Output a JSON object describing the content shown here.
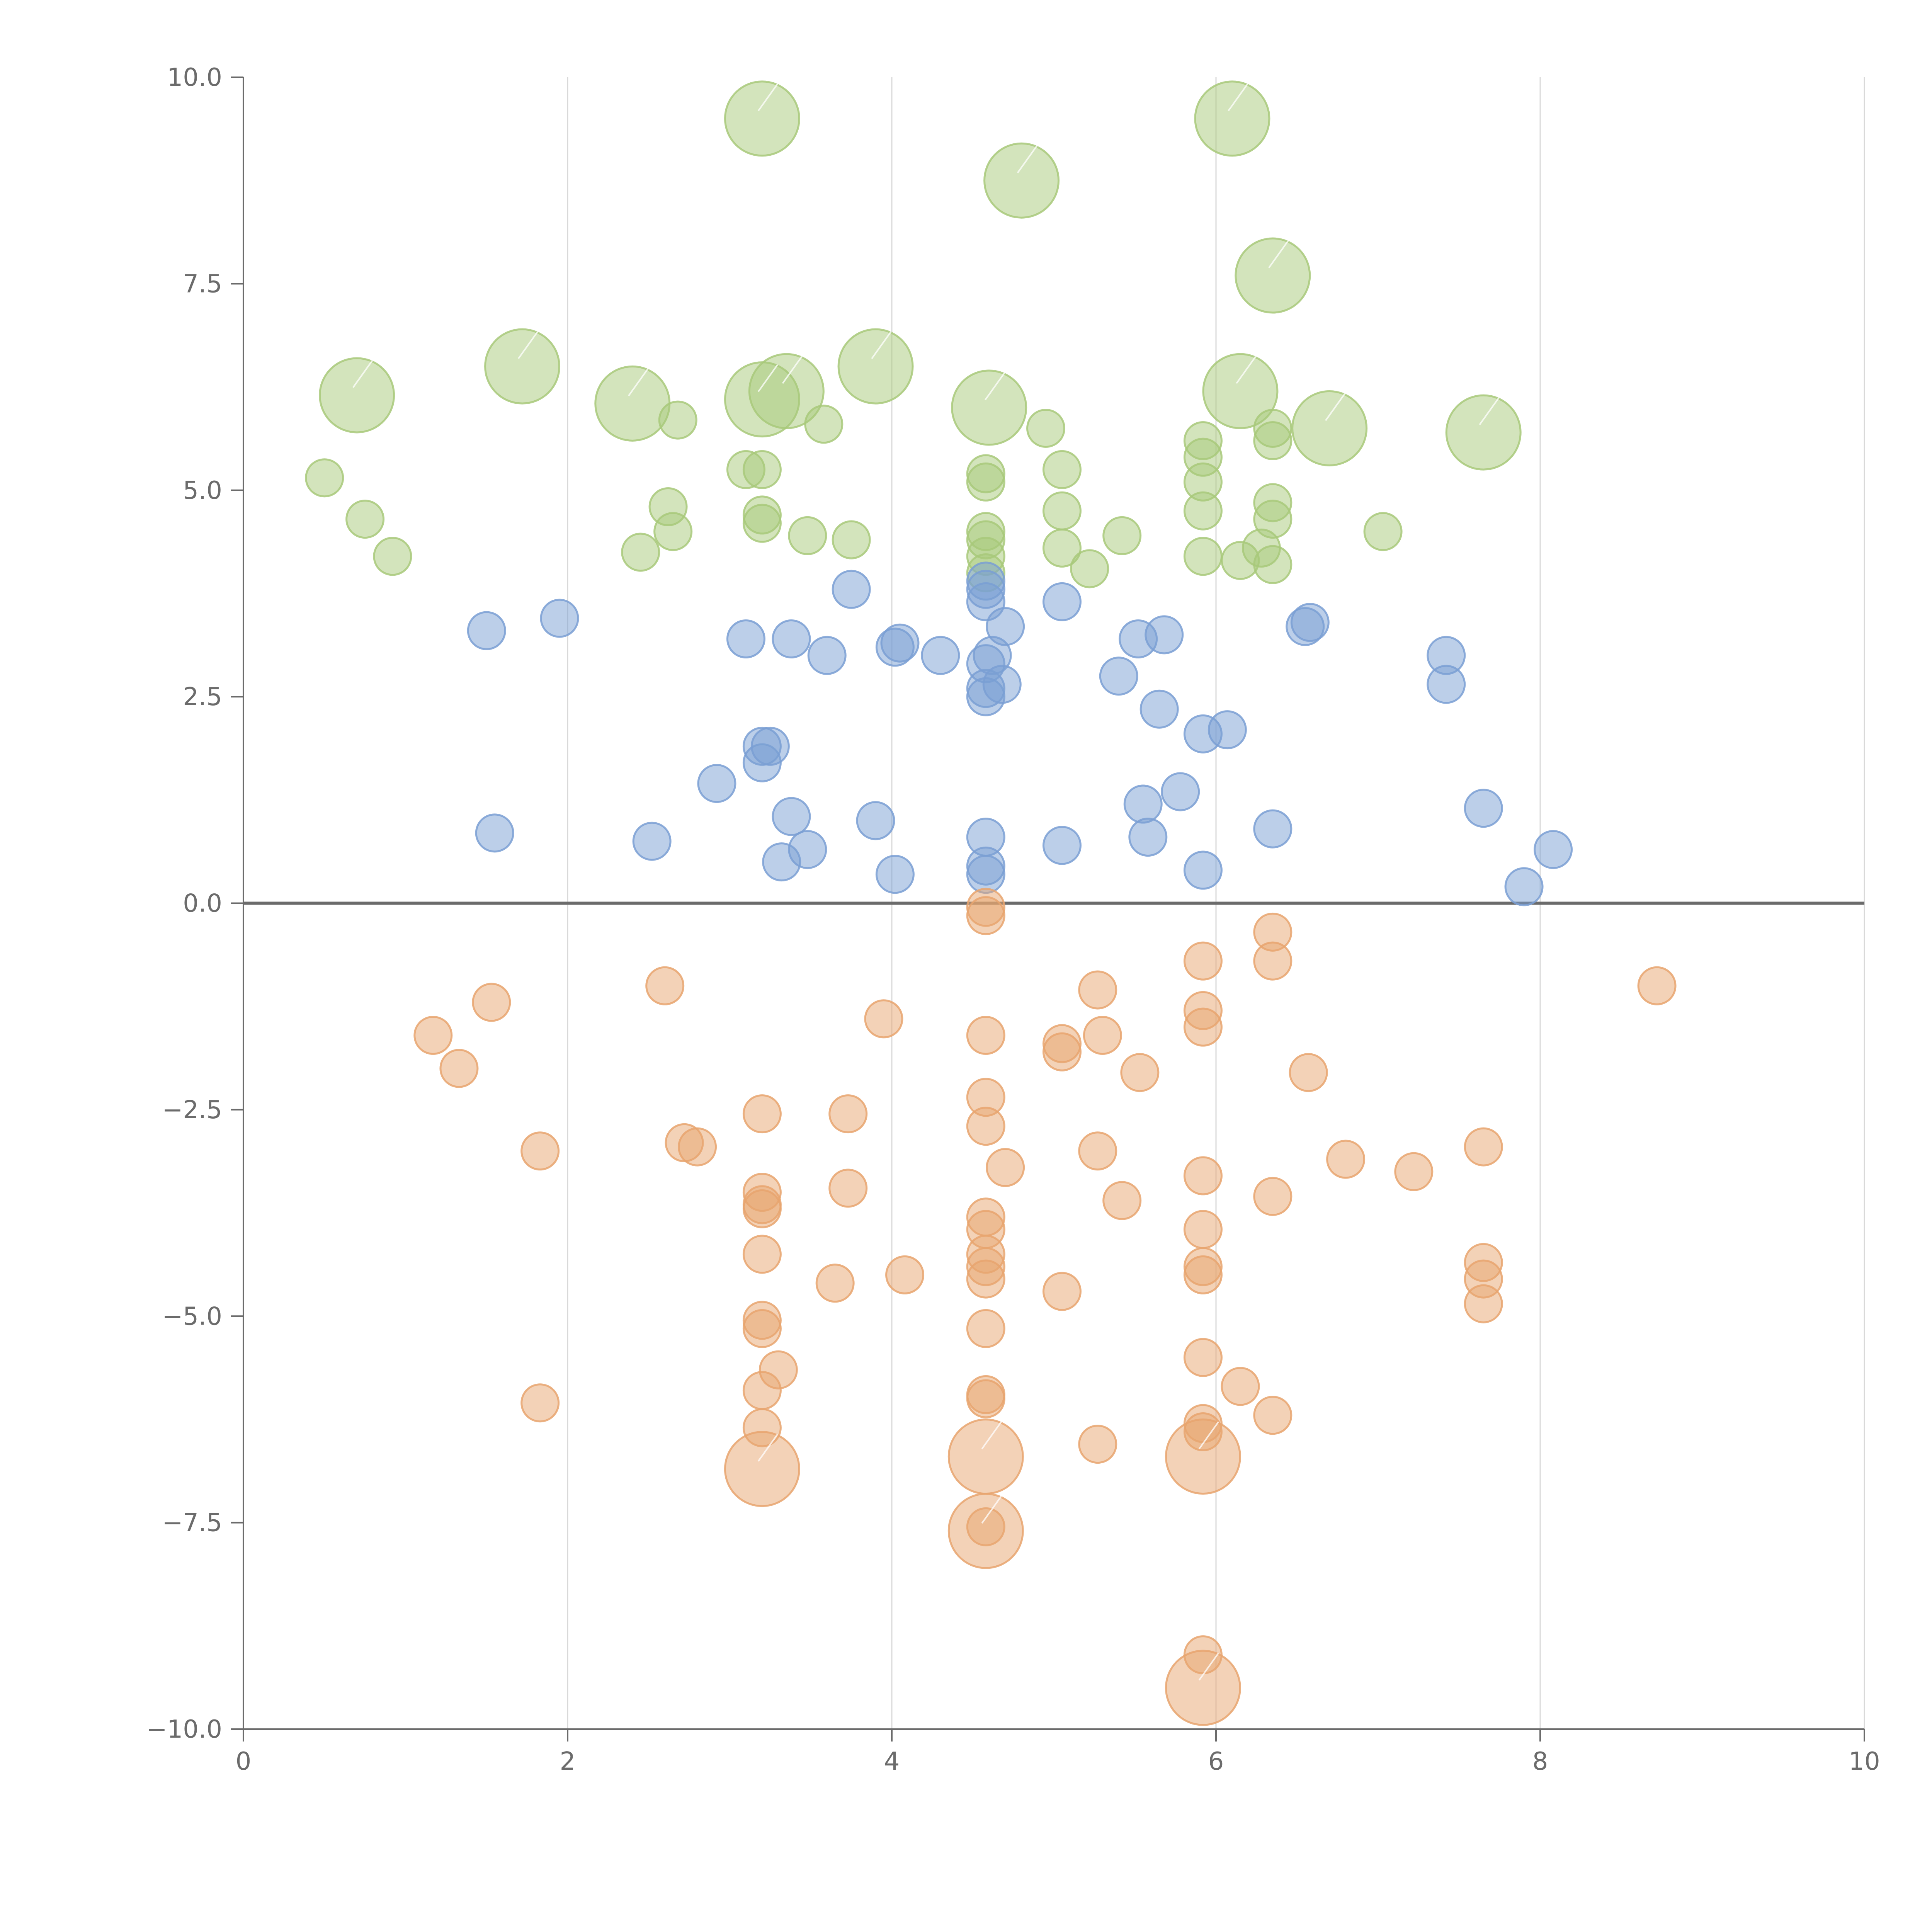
{
  "chart_data": {
    "type": "scatter",
    "xlim": [
      0,
      10
    ],
    "ylim": [
      -10,
      10
    ],
    "x_ticks": [
      0,
      2,
      4,
      6,
      8,
      10
    ],
    "y_ticks": [
      -10,
      -7.5,
      -5,
      -2.5,
      0,
      2.5,
      5,
      7.5,
      10
    ],
    "x_tick_labels": [
      "0",
      "2",
      "4",
      "6",
      "8",
      "10"
    ],
    "y_tick_labels": [
      "−10.0",
      "−7.5",
      "−5.0",
      "−2.5",
      "0.0",
      "2.5",
      "5.0",
      "7.5",
      "10.0"
    ],
    "grid": "vertical",
    "zero_line": true,
    "colors": {
      "green": "#a8c97a",
      "blue": "#7a9fd4",
      "orange": "#e8a56f"
    },
    "series": [
      {
        "color_key": "green",
        "points": [
          [
            3.2,
            9.5,
            2
          ],
          [
            6.1,
            9.5,
            2
          ],
          [
            4.8,
            8.75,
            2
          ],
          [
            6.35,
            7.6,
            2
          ],
          [
            0.7,
            6.15,
            2
          ],
          [
            1.72,
            6.5,
            2
          ],
          [
            3.9,
            6.5,
            2
          ],
          [
            2.4,
            6.05,
            2
          ],
          [
            3.2,
            6.1,
            2
          ],
          [
            3.35,
            6.2,
            2
          ],
          [
            4.6,
            6.0,
            2
          ],
          [
            6.15,
            6.2,
            2
          ],
          [
            6.7,
            5.75,
            2
          ],
          [
            7.65,
            5.7,
            2
          ],
          [
            0.5,
            5.15,
            1
          ],
          [
            0.75,
            4.65,
            1
          ],
          [
            0.92,
            4.2,
            1
          ],
          [
            2.45,
            4.25,
            1
          ],
          [
            2.62,
            4.8,
            1
          ],
          [
            2.65,
            4.5,
            1
          ],
          [
            2.68,
            5.85,
            1
          ],
          [
            3.1,
            5.25,
            1
          ],
          [
            3.2,
            5.25,
            1
          ],
          [
            3.2,
            4.7,
            1
          ],
          [
            3.2,
            4.6,
            1
          ],
          [
            3.48,
            4.45,
            1
          ],
          [
            3.58,
            5.8,
            1
          ],
          [
            3.75,
            4.4,
            1
          ],
          [
            4.58,
            5.2,
            1
          ],
          [
            4.58,
            5.1,
            1
          ],
          [
            4.58,
            4.5,
            1
          ],
          [
            4.58,
            4.4,
            1
          ],
          [
            4.58,
            4.2,
            1
          ],
          [
            4.58,
            4.0,
            1
          ],
          [
            4.95,
            5.75,
            1
          ],
          [
            5.05,
            5.25,
            1
          ],
          [
            5.05,
            4.75,
            1
          ],
          [
            5.05,
            4.3,
            1
          ],
          [
            5.22,
            4.05,
            1
          ],
          [
            5.42,
            4.45,
            1
          ],
          [
            5.92,
            5.6,
            1
          ],
          [
            5.92,
            5.4,
            1
          ],
          [
            5.92,
            5.1,
            1
          ],
          [
            5.92,
            4.75,
            1
          ],
          [
            5.92,
            4.2,
            1
          ],
          [
            6.15,
            4.15,
            1
          ],
          [
            6.28,
            4.3,
            1
          ],
          [
            6.35,
            5.75,
            1
          ],
          [
            6.35,
            5.6,
            1
          ],
          [
            6.35,
            4.85,
            1
          ],
          [
            6.35,
            4.65,
            1
          ],
          [
            6.35,
            4.1,
            1
          ],
          [
            7.03,
            4.5,
            1
          ]
        ]
      },
      {
        "color_key": "blue",
        "points": [
          [
            1.5,
            3.3,
            1
          ],
          [
            1.95,
            3.45,
            1
          ],
          [
            3.1,
            3.2,
            1
          ],
          [
            3.38,
            3.2,
            1
          ],
          [
            3.6,
            3.0,
            1
          ],
          [
            3.75,
            3.8,
            1
          ],
          [
            4.02,
            3.1,
            1
          ],
          [
            4.05,
            3.15,
            1
          ],
          [
            4.3,
            3.0,
            1
          ],
          [
            4.58,
            3.9,
            1
          ],
          [
            4.58,
            3.65,
            1
          ],
          [
            4.58,
            3.8,
            1
          ],
          [
            4.58,
            2.9,
            1
          ],
          [
            4.58,
            2.6,
            1
          ],
          [
            4.58,
            2.5,
            1
          ],
          [
            4.62,
            3.0,
            1
          ],
          [
            4.68,
            2.65,
            1
          ],
          [
            4.7,
            3.35,
            1
          ],
          [
            5.05,
            3.65,
            1
          ],
          [
            5.4,
            2.75,
            1
          ],
          [
            5.52,
            3.2,
            1
          ],
          [
            5.65,
            2.35,
            1
          ],
          [
            5.68,
            3.25,
            1
          ],
          [
            5.92,
            2.05,
            1
          ],
          [
            6.07,
            2.1,
            1
          ],
          [
            6.55,
            3.35,
            1
          ],
          [
            6.58,
            3.4,
            1
          ],
          [
            7.42,
            3.0,
            1
          ],
          [
            7.42,
            2.65,
            1
          ],
          [
            1.55,
            0.85,
            1
          ],
          [
            2.52,
            0.75,
            1
          ],
          [
            2.92,
            1.45,
            1
          ],
          [
            3.2,
            1.9,
            1
          ],
          [
            3.2,
            1.7,
            1
          ],
          [
            3.25,
            1.9,
            1
          ],
          [
            3.32,
            0.5,
            1
          ],
          [
            3.38,
            1.05,
            1
          ],
          [
            3.48,
            0.65,
            1
          ],
          [
            3.9,
            1.0,
            1
          ],
          [
            4.02,
            0.35,
            1
          ],
          [
            4.58,
            0.8,
            1
          ],
          [
            4.58,
            0.45,
            1
          ],
          [
            4.58,
            0.35,
            1
          ],
          [
            5.05,
            0.7,
            1
          ],
          [
            5.55,
            1.2,
            1
          ],
          [
            5.58,
            0.8,
            1
          ],
          [
            5.78,
            1.35,
            1
          ],
          [
            5.92,
            0.4,
            1
          ],
          [
            6.35,
            0.9,
            1
          ],
          [
            7.65,
            1.15,
            1
          ],
          [
            7.9,
            0.2,
            1
          ],
          [
            8.08,
            0.65,
            1
          ]
        ]
      },
      {
        "color_key": "orange",
        "points": [
          [
            4.58,
            -0.05,
            1
          ],
          [
            4.58,
            -0.15,
            1
          ],
          [
            1.17,
            -1.6,
            1
          ],
          [
            1.33,
            -2.0,
            1
          ],
          [
            1.53,
            -1.2,
            1
          ],
          [
            1.83,
            -3.0,
            1
          ],
          [
            1.83,
            -6.05,
            1
          ],
          [
            2.6,
            -1.0,
            1
          ],
          [
            2.72,
            -2.9,
            1
          ],
          [
            2.8,
            -2.95,
            1
          ],
          [
            3.2,
            -2.55,
            1
          ],
          [
            3.2,
            -3.5,
            1
          ],
          [
            3.2,
            -3.65,
            1
          ],
          [
            3.2,
            -3.7,
            1
          ],
          [
            3.2,
            -4.25,
            1
          ],
          [
            3.2,
            -5.05,
            1
          ],
          [
            3.2,
            -5.15,
            1
          ],
          [
            3.2,
            -5.9,
            1
          ],
          [
            3.2,
            -6.35,
            1
          ],
          [
            3.3,
            -5.65,
            1
          ],
          [
            3.65,
            -4.6,
            1
          ],
          [
            3.73,
            -2.55,
            1
          ],
          [
            3.73,
            -3.45,
            1
          ],
          [
            3.95,
            -1.4,
            1
          ],
          [
            4.08,
            -4.5,
            1
          ],
          [
            4.58,
            -1.6,
            1
          ],
          [
            4.58,
            -2.35,
            1
          ],
          [
            4.58,
            -2.7,
            1
          ],
          [
            4.58,
            -3.8,
            1
          ],
          [
            4.58,
            -3.95,
            1
          ],
          [
            4.58,
            -4.25,
            1
          ],
          [
            4.58,
            -4.4,
            1
          ],
          [
            4.58,
            -4.55,
            1
          ],
          [
            4.58,
            -5.15,
            1
          ],
          [
            4.58,
            -5.95,
            1
          ],
          [
            4.58,
            -6.0,
            1
          ],
          [
            4.58,
            -7.55,
            1
          ],
          [
            4.7,
            -3.2,
            1
          ],
          [
            5.05,
            -1.7,
            1
          ],
          [
            5.05,
            -1.8,
            1
          ],
          [
            5.05,
            -4.7,
            1
          ],
          [
            5.27,
            -1.05,
            1
          ],
          [
            5.27,
            -3.0,
            1
          ],
          [
            5.27,
            -6.55,
            1
          ],
          [
            5.3,
            -1.6,
            1
          ],
          [
            5.42,
            -3.6,
            1
          ],
          [
            5.53,
            -2.05,
            1
          ],
          [
            5.92,
            -0.7,
            1
          ],
          [
            5.92,
            -1.3,
            1
          ],
          [
            5.92,
            -1.5,
            1
          ],
          [
            5.92,
            -3.3,
            1
          ],
          [
            5.92,
            -3.95,
            1
          ],
          [
            5.92,
            -4.4,
            1
          ],
          [
            5.92,
            -4.5,
            1
          ],
          [
            5.92,
            -5.5,
            1
          ],
          [
            5.92,
            -6.3,
            1
          ],
          [
            5.92,
            -6.4,
            1
          ],
          [
            5.92,
            -9.1,
            1
          ],
          [
            6.15,
            -5.85,
            1
          ],
          [
            6.35,
            -0.35,
            1
          ],
          [
            6.35,
            -0.7,
            1
          ],
          [
            6.35,
            -3.55,
            1
          ],
          [
            6.35,
            -6.2,
            1
          ],
          [
            6.57,
            -2.05,
            1
          ],
          [
            6.8,
            -3.1,
            1
          ],
          [
            7.22,
            -3.25,
            1
          ],
          [
            7.65,
            -2.95,
            1
          ],
          [
            7.65,
            -4.35,
            1
          ],
          [
            7.65,
            -4.55,
            1
          ],
          [
            7.65,
            -4.85,
            1
          ],
          [
            8.72,
            -1.0,
            1
          ],
          [
            3.2,
            -6.85,
            2
          ],
          [
            4.58,
            -6.7,
            2
          ],
          [
            4.58,
            -7.6,
            2
          ],
          [
            5.92,
            -6.7,
            2
          ],
          [
            5.92,
            -9.5,
            2
          ]
        ]
      }
    ]
  }
}
